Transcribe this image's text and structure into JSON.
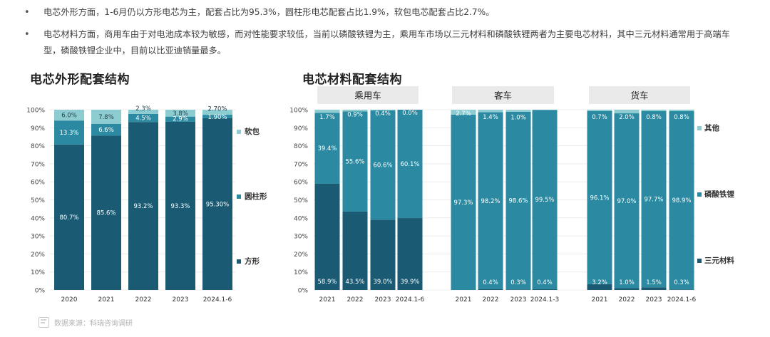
{
  "bullets": [
    "电芯外形方面，1-6月仍以方形电芯为主，配套占比为95.3%，圆柱形电芯配套占比1.9%，软包电芯配套占比2.7%。",
    "电芯材料方面，商用车由于对电池成本较为敏感，而对性能要求较低，当前以磷酸铁锂为主，乘用车市场以三元材料和磷酸铁锂两者为主要电芯材料，其中三元材料通常用于高端车型，磷酸铁锂企业中，目前以比亚迪销量最多。"
  ],
  "left_title": "电芯外形配套结构",
  "right_title": "电芯材料配套结构",
  "source": "数据来源：科瑞咨询调研",
  "colors": {
    "dark": "#1b5a73",
    "mid": "#2b8aa2",
    "light": "#8dcdd2"
  },
  "chart_data": [
    {
      "type": "bar",
      "stacked": true,
      "categories": [
        "2020",
        "2021",
        "2022",
        "2023",
        "2024.1-6"
      ],
      "ylim": [
        0,
        100
      ],
      "yticks": [
        "0%",
        "10%",
        "20%",
        "30%",
        "40%",
        "50%",
        "60%",
        "70%",
        "80%",
        "90%",
        "100%"
      ],
      "series": [
        {
          "name": "方形",
          "color": "dark",
          "values": [
            80.7,
            85.6,
            93.2,
            93.3,
            95.3
          ],
          "labels": [
            "80.7%",
            "85.6%",
            "93.2%",
            "93.3%",
            "95.30%"
          ]
        },
        {
          "name": "圆柱形",
          "color": "mid",
          "values": [
            13.3,
            6.6,
            4.5,
            2.9,
            1.9
          ],
          "labels": [
            "13.3%",
            "6.6%",
            "4.5%",
            "2.9%",
            "1.90%"
          ]
        },
        {
          "name": "软包",
          "color": "light",
          "values": [
            6.0,
            7.8,
            2.3,
            3.8,
            2.7
          ],
          "labels": [
            "6.0%",
            "7.8%",
            "2.3%",
            "3.8%",
            "2.70%"
          ]
        }
      ],
      "legend": [
        "软包",
        "圆柱形",
        "方形"
      ]
    },
    {
      "type": "bar",
      "stacked": true,
      "ylim": [
        0,
        100
      ],
      "yticks": [
        "0%",
        "10%",
        "20%",
        "30%",
        "40%",
        "50%",
        "60%",
        "70%",
        "80%",
        "90%",
        "100%"
      ],
      "groups": [
        {
          "name": "乘用车",
          "categories": [
            "2021",
            "2022",
            "2023",
            "2024.1-6"
          ],
          "series": [
            {
              "name": "三元材料",
              "color": "dark",
              "values": [
                58.9,
                43.5,
                39.0,
                39.9
              ],
              "labels": [
                "58.9%",
                "43.5%",
                "39.0%",
                "39.9%"
              ]
            },
            {
              "name": "磷酸铁锂",
              "color": "mid",
              "values": [
                39.4,
                55.6,
                60.6,
                60.1
              ],
              "labels": [
                "39.4%",
                "55.6%",
                "60.6%",
                "60.1%"
              ]
            },
            {
              "name": "其他",
              "color": "light",
              "values": [
                1.7,
                0.9,
                0.4,
                0.0
              ],
              "labels": [
                "1.7%",
                "0.9%",
                "0.4%",
                "0.0%"
              ]
            }
          ]
        },
        {
          "name": "客车",
          "categories": [
            "2021",
            "2022",
            "2023",
            "2024.1-3"
          ],
          "series": [
            {
              "name": "三元材料",
              "color": "dark",
              "values": [
                0.0,
                0.4,
                0.3,
                0.4
              ],
              "labels": [
                "",
                "0.4%",
                "0.3%",
                "0.4%"
              ]
            },
            {
              "name": "磷酸铁锂",
              "color": "mid",
              "values": [
                97.3,
                98.2,
                98.6,
                99.5
              ],
              "labels": [
                "97.3%",
                "98.2%",
                "98.6%",
                "99.5%"
              ]
            },
            {
              "name": "其他",
              "color": "light",
              "values": [
                2.7,
                1.4,
                1.0,
                0.1
              ],
              "labels": [
                "2.7%",
                "1.4%",
                "1.0%",
                ""
              ]
            }
          ]
        },
        {
          "name": "货车",
          "categories": [
            "2021",
            "2022",
            "2023",
            "2024.1-6"
          ],
          "series": [
            {
              "name": "三元材料",
              "color": "dark",
              "values": [
                3.2,
                1.0,
                1.5,
                0.3
              ],
              "labels": [
                "3.2%",
                "1.0%",
                "1.5%",
                "0.3%"
              ]
            },
            {
              "name": "磷酸铁锂",
              "color": "mid",
              "values": [
                96.1,
                97.0,
                97.7,
                98.9
              ],
              "labels": [
                "96.1%",
                "97.0%",
                "97.7%",
                "98.9%"
              ]
            },
            {
              "name": "其他",
              "color": "light",
              "values": [
                0.7,
                2.0,
                0.8,
                0.8
              ],
              "labels": [
                "0.7%",
                "2.0%",
                "0.8%",
                "0.8%"
              ]
            }
          ]
        }
      ],
      "legend": [
        "其他",
        "磷酸铁锂",
        "三元材料"
      ]
    }
  ]
}
